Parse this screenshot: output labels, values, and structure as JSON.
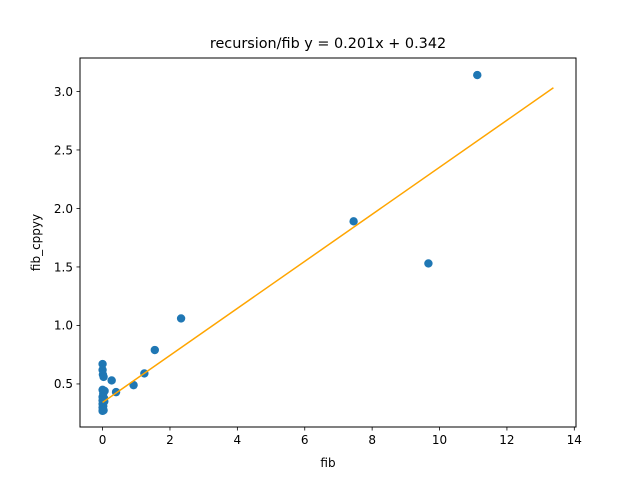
{
  "chart_data": {
    "type": "scatter",
    "title": "recursion/fib y = 0.201x + 0.342",
    "xlabel": "fib",
    "ylabel": "fib_cppyy",
    "xlim": [
      -0.67,
      14.05
    ],
    "ylim": [
      0.132,
      3.286
    ],
    "x_ticks": [
      0,
      2,
      4,
      6,
      8,
      10,
      12,
      14
    ],
    "y_ticks": [
      0.5,
      1.0,
      1.5,
      2.0,
      2.5,
      3.0
    ],
    "x_tick_labels": [
      "0",
      "2",
      "4",
      "6",
      "8",
      "10",
      "12",
      "14"
    ],
    "y_tick_labels": [
      "0.5",
      "1.0",
      "1.5",
      "2.0",
      "2.5",
      "3.0"
    ],
    "grid": false,
    "legend": "none",
    "colors": {
      "points": "#1f77b4",
      "fit_line": "#ffa500"
    },
    "points": [
      {
        "x": 0.0,
        "y": 0.67
      },
      {
        "x": 0.0,
        "y": 0.62
      },
      {
        "x": 0.01,
        "y": 0.58
      },
      {
        "x": 0.03,
        "y": 0.56
      },
      {
        "x": 0.0,
        "y": 0.45
      },
      {
        "x": 0.06,
        "y": 0.44
      },
      {
        "x": 0.02,
        "y": 0.42
      },
      {
        "x": 0.0,
        "y": 0.39
      },
      {
        "x": 0.04,
        "y": 0.38
      },
      {
        "x": 0.0,
        "y": 0.36
      },
      {
        "x": 0.05,
        "y": 0.35
      },
      {
        "x": 0.0,
        "y": 0.33
      },
      {
        "x": 0.02,
        "y": 0.31
      },
      {
        "x": 0.0,
        "y": 0.3
      },
      {
        "x": 0.01,
        "y": 0.28
      },
      {
        "x": 0.0,
        "y": 0.27
      },
      {
        "x": 0.03,
        "y": 0.275
      },
      {
        "x": 0.27,
        "y": 0.53
      },
      {
        "x": 0.4,
        "y": 0.43
      },
      {
        "x": 0.92,
        "y": 0.49
      },
      {
        "x": 1.24,
        "y": 0.59
      },
      {
        "x": 1.55,
        "y": 0.79
      },
      {
        "x": 2.33,
        "y": 1.06
      },
      {
        "x": 7.45,
        "y": 1.89
      },
      {
        "x": 9.67,
        "y": 1.53
      },
      {
        "x": 11.12,
        "y": 3.14
      }
    ],
    "fit_line": {
      "slope": 0.201,
      "intercept": 0.342,
      "x_range": [
        0.0,
        13.38
      ]
    }
  }
}
